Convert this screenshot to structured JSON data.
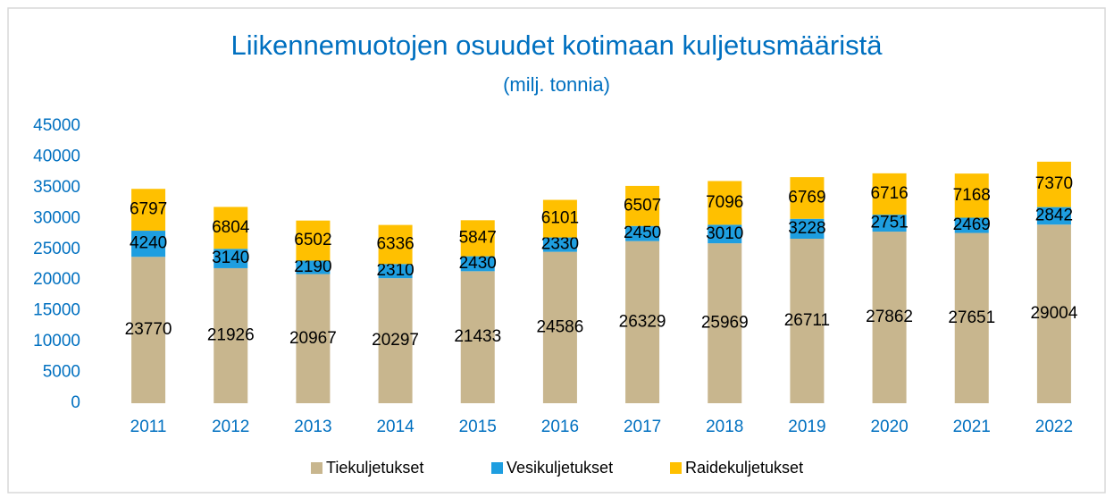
{
  "chart_data": {
    "type": "stacked_bar",
    "title": "Liikennemuotojen osuudet kotimaan kuljetusmääristä",
    "subtitle": "(milj. tonnia)",
    "categories": [
      "2011",
      "2012",
      "2013",
      "2014",
      "2015",
      "2016",
      "2017",
      "2018",
      "2019",
      "2020",
      "2021",
      "2022"
    ],
    "series": [
      {
        "name": "Tiekuljetukset",
        "color": "#c8b68e",
        "values": [
          23770,
          21926,
          20967,
          20297,
          21433,
          24586,
          26329,
          25969,
          26711,
          27862,
          27651,
          29004
        ]
      },
      {
        "name": "Vesikuljetukset",
        "color": "#1e9ee0",
        "values": [
          4240,
          3140,
          2190,
          2310,
          2430,
          2330,
          2450,
          3010,
          3228,
          2751,
          2469,
          2842
        ]
      },
      {
        "name": "Raidekuljetukset",
        "color": "#ffc000",
        "values": [
          6797,
          6804,
          6502,
          6336,
          5847,
          6101,
          6507,
          7096,
          6769,
          6716,
          7168,
          7370
        ]
      }
    ],
    "ylim": [
      0,
      45000
    ],
    "yticks": [
      0,
      5000,
      10000,
      15000,
      20000,
      25000,
      30000,
      35000,
      40000,
      45000
    ],
    "grid": false,
    "legend": "bottom"
  }
}
